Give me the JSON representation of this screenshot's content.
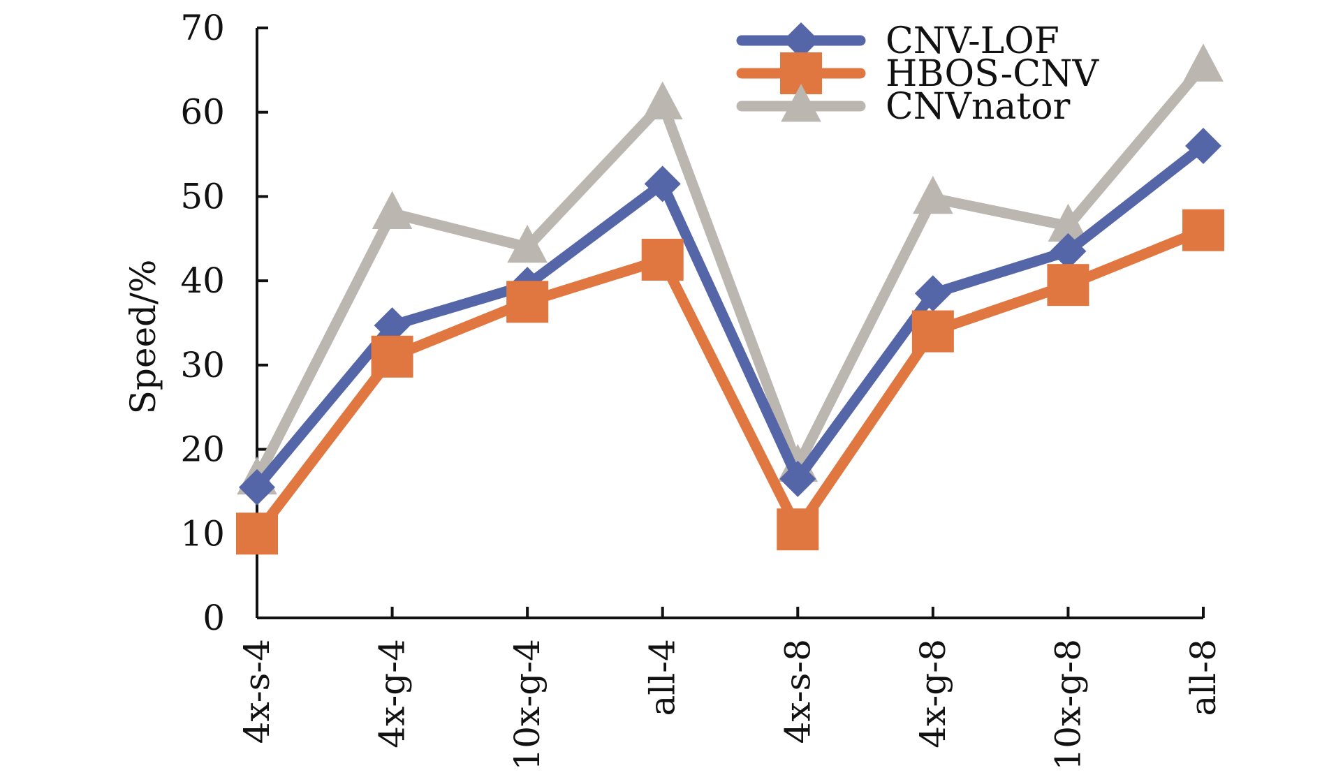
{
  "chart_data": {
    "type": "line",
    "title": "",
    "xlabel": "",
    "ylabel": "Speed/%",
    "ylim": [
      0,
      70
    ],
    "yticks": [
      0,
      10,
      20,
      30,
      40,
      50,
      60,
      70
    ],
    "categories": [
      "4x-s-4",
      "4x-g-4",
      "10x-g-4",
      "all-4",
      "4x-s-8",
      "4x-g-8",
      "10x-g-8",
      "all-8"
    ],
    "grid": false,
    "legend_position": "top-right",
    "series": [
      {
        "name": "CNV-LOF",
        "marker": "diamond",
        "color": "#5566a8",
        "values": [
          15.5,
          34.7,
          39.5,
          51.5,
          16.5,
          38.5,
          43.5,
          56.0
        ]
      },
      {
        "name": "HBOS-CNV",
        "marker": "square",
        "color": "#e07640",
        "values": [
          10.0,
          31.0,
          37.5,
          42.5,
          10.5,
          34.0,
          39.5,
          46.0
        ]
      },
      {
        "name": "CNVnator",
        "marker": "triangle",
        "color": "#bcb6b0",
        "values": [
          16.5,
          48.0,
          44.0,
          61.0,
          18.0,
          49.8,
          46.5,
          65.5
        ]
      }
    ]
  }
}
